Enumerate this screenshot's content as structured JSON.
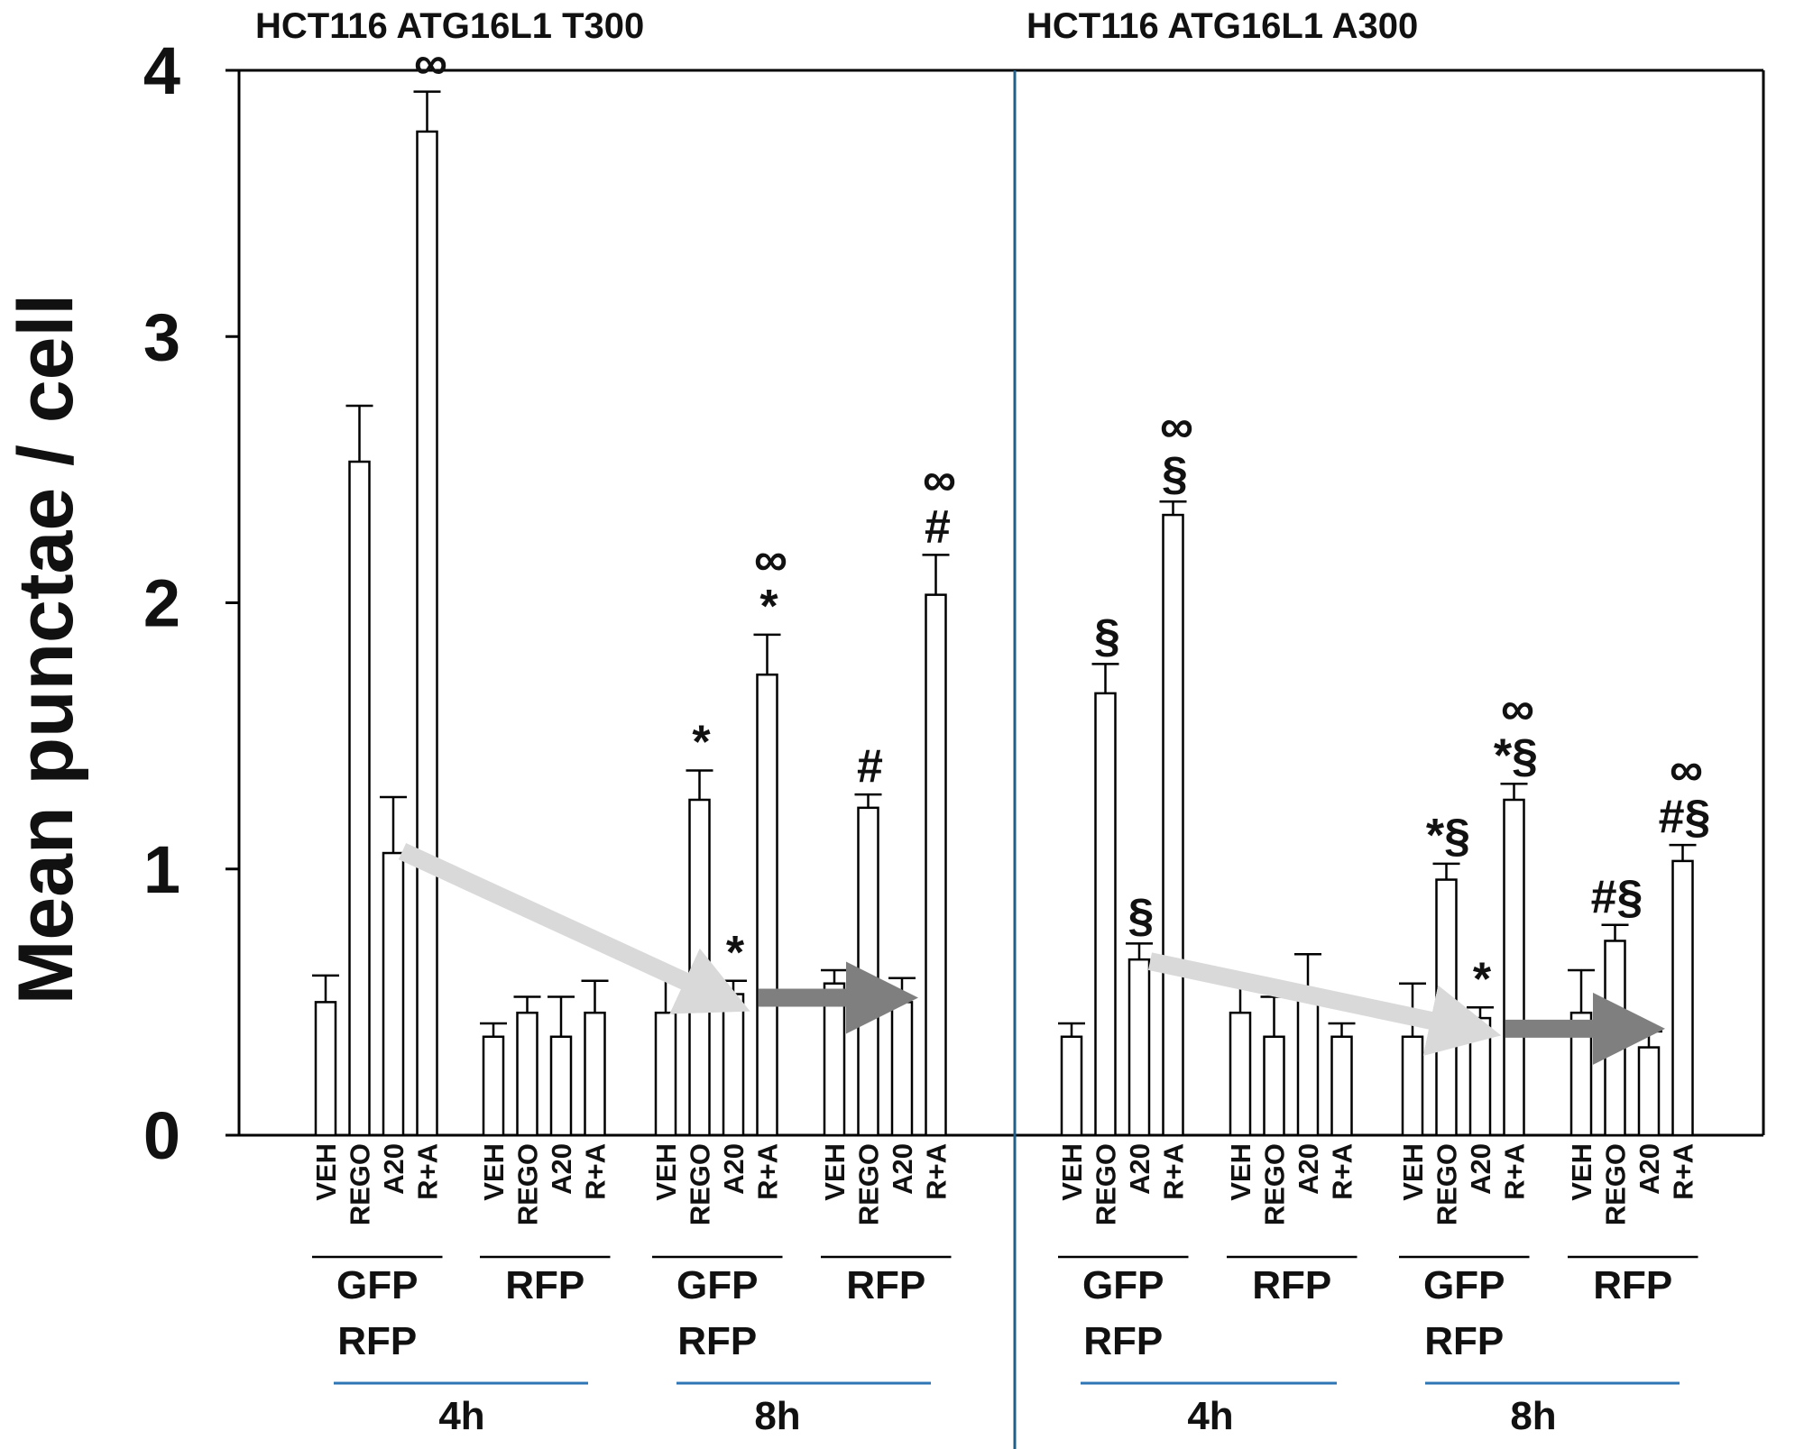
{
  "colors": {
    "bar_fill": "#ffffff",
    "bar_stroke": "#000000",
    "divider": "#1f5f8b",
    "group_underline_blue": "#2e75b6",
    "arrow_light": "#d9d9d9",
    "arrow_dark": "#7f7f7f"
  },
  "chart_data": {
    "type": "bar",
    "ylabel": "Mean punctae / cell",
    "ylim": [
      0,
      4
    ],
    "yticks": [
      0,
      1,
      2,
      3,
      4
    ],
    "grid": false,
    "panels": [
      {
        "title": "HCT116 ATG16L1 T300",
        "groups": [
          {
            "label_lines": [
              "GFP",
              "RFP"
            ],
            "time": "4h",
            "bars": [
              {
                "treatment": "VEH",
                "value": 0.5,
                "error": 0.1,
                "sig": ""
              },
              {
                "treatment": "REGO",
                "value": 2.53,
                "error": 0.21,
                "sig": ""
              },
              {
                "treatment": "A20",
                "value": 1.06,
                "error": 0.21,
                "sig": ""
              },
              {
                "treatment": "R+A",
                "value": 3.77,
                "error": 0.15,
                "sig": "∞"
              }
            ]
          },
          {
            "label_lines": [
              "RFP"
            ],
            "time": "4h",
            "bars": [
              {
                "treatment": "VEH",
                "value": 0.37,
                "error": 0.05,
                "sig": ""
              },
              {
                "treatment": "REGO",
                "value": 0.46,
                "error": 0.06,
                "sig": ""
              },
              {
                "treatment": "A20",
                "value": 0.37,
                "error": 0.15,
                "sig": ""
              },
              {
                "treatment": "R+A",
                "value": 0.46,
                "error": 0.12,
                "sig": ""
              }
            ]
          },
          {
            "label_lines": [
              "GFP",
              "RFP"
            ],
            "time": "8h",
            "bars": [
              {
                "treatment": "VEH",
                "value": 0.46,
                "error": 0.16,
                "sig": ""
              },
              {
                "treatment": "REGO",
                "value": 1.26,
                "error": 0.11,
                "sig": "*"
              },
              {
                "treatment": "A20",
                "value": 0.53,
                "error": 0.05,
                "sig": "*"
              },
              {
                "treatment": "R+A",
                "value": 1.73,
                "error": 0.15,
                "sig": "*∞"
              }
            ]
          },
          {
            "label_lines": [
              "RFP"
            ],
            "time": "8h",
            "bars": [
              {
                "treatment": "VEH",
                "value": 0.57,
                "error": 0.05,
                "sig": ""
              },
              {
                "treatment": "REGO",
                "value": 1.23,
                "error": 0.05,
                "sig": "#"
              },
              {
                "treatment": "A20",
                "value": 0.5,
                "error": 0.09,
                "sig": ""
              },
              {
                "treatment": "R+A",
                "value": 2.03,
                "error": 0.15,
                "sig": "#∞"
              }
            ]
          }
        ],
        "time_labels": [
          "4h",
          "8h"
        ]
      },
      {
        "title": "HCT116 ATG16L1 A300",
        "groups": [
          {
            "label_lines": [
              "GFP",
              "RFP"
            ],
            "time": "4h",
            "bars": [
              {
                "treatment": "VEH",
                "value": 0.37,
                "error": 0.05,
                "sig": ""
              },
              {
                "treatment": "REGO",
                "value": 1.66,
                "error": 0.11,
                "sig": "§"
              },
              {
                "treatment": "A20",
                "value": 0.66,
                "error": 0.06,
                "sig": "§"
              },
              {
                "treatment": "R+A",
                "value": 2.33,
                "error": 0.05,
                "sig": "§∞"
              }
            ]
          },
          {
            "label_lines": [
              "RFP"
            ],
            "time": "4h",
            "bars": [
              {
                "treatment": "VEH",
                "value": 0.46,
                "error": 0.12,
                "sig": ""
              },
              {
                "treatment": "REGO",
                "value": 0.37,
                "error": 0.15,
                "sig": ""
              },
              {
                "treatment": "A20",
                "value": 0.53,
                "error": 0.15,
                "sig": ""
              },
              {
                "treatment": "R+A",
                "value": 0.37,
                "error": 0.05,
                "sig": ""
              }
            ]
          },
          {
            "label_lines": [
              "GFP",
              "RFP"
            ],
            "time": "8h",
            "bars": [
              {
                "treatment": "VEH",
                "value": 0.37,
                "error": 0.2,
                "sig": ""
              },
              {
                "treatment": "REGO",
                "value": 0.96,
                "error": 0.06,
                "sig": "*§"
              },
              {
                "treatment": "A20",
                "value": 0.44,
                "error": 0.04,
                "sig": "*"
              },
              {
                "treatment": "R+A",
                "value": 1.26,
                "error": 0.06,
                "sig": "*§∞"
              }
            ]
          },
          {
            "label_lines": [
              "RFP"
            ],
            "time": "8h",
            "bars": [
              {
                "treatment": "VEH",
                "value": 0.46,
                "error": 0.16,
                "sig": ""
              },
              {
                "treatment": "REGO",
                "value": 0.73,
                "error": 0.06,
                "sig": "#§"
              },
              {
                "treatment": "A20",
                "value": 0.33,
                "error": 0.06,
                "sig": ""
              },
              {
                "treatment": "R+A",
                "value": 1.03,
                "error": 0.06,
                "sig": "#§∞"
              }
            ]
          }
        ],
        "time_labels": [
          "4h",
          "8h"
        ]
      }
    ]
  }
}
